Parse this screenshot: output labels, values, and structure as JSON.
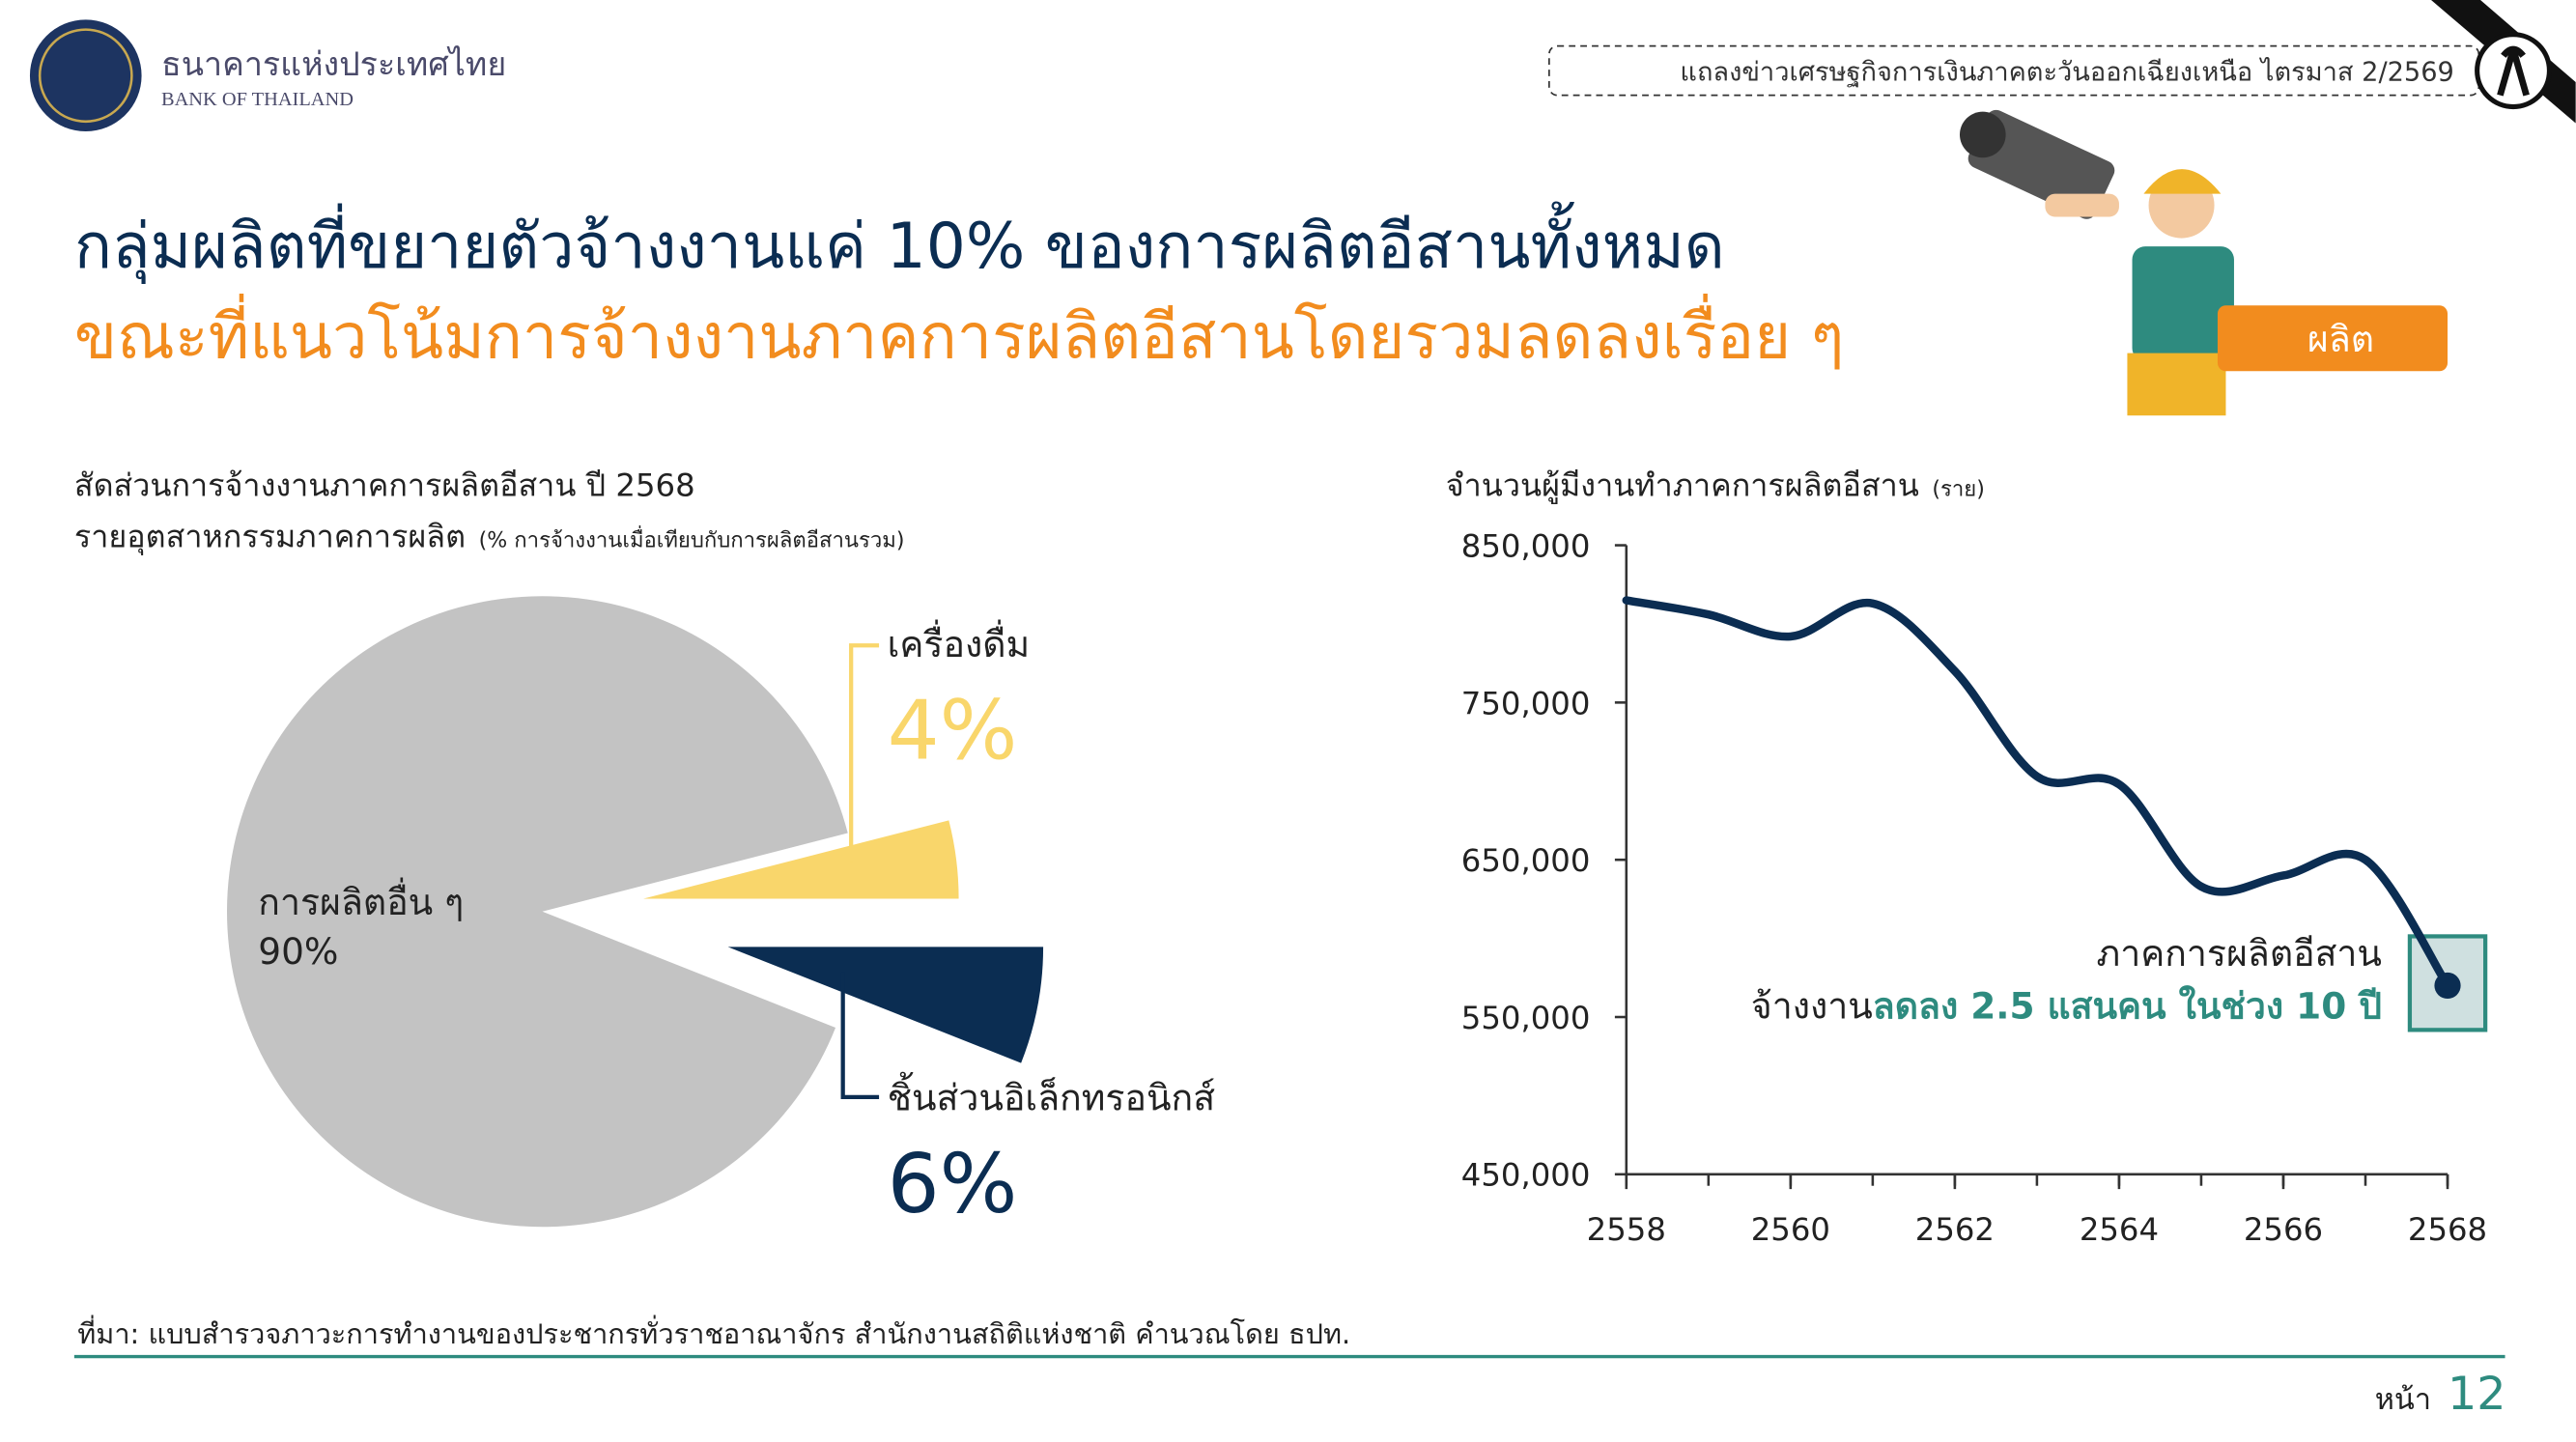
{
  "header": {
    "org_thai": "ธนาคารแห่งประเทศไทย",
    "org_en": "BANK OF THAILAND",
    "banner": "แถลงข่าวเศรษฐกิจการเงินภาคตะวันออกเฉียงเหนือ ไตรมาส 2/2569"
  },
  "title": {
    "line1": "กลุ่มผลิตที่ขยายตัวจ้างงานแค่ 10% ของการผลิตอีสานทั้งหมด",
    "line2": "ขณะที่แนวโน้มการจ้างงานภาคการผลิตอีสานโดยรวมลดลงเรื่อย ๆ"
  },
  "tag": "ผลิต",
  "chart_data": [
    {
      "type": "pie",
      "title": "สัดส่วนการจ้างงานภาคการผลิตอีสาน ปี 2568",
      "subtitle": "รายอุตสาหกรรมภาคการผลิต",
      "note": "(% การจ้างงานเมื่อเทียบกับการผลิตอีสานรวม)",
      "categories": [
        "การผลิตอื่น ๆ",
        "เครื่องดื่ม",
        "ชิ้นส่วนอิเล็กทรอนิกส์"
      ],
      "values": [
        90,
        4,
        6
      ],
      "value_labels": [
        "90%",
        "4%",
        "6%"
      ],
      "colors": [
        "#c3c3c3",
        "#f9d66b",
        "#0b2d52"
      ]
    },
    {
      "type": "line",
      "title": "จำนวนผู้มีงานทำภาคการผลิตอีสาน",
      "unit": "(ราย)",
      "x": [
        2558,
        2559,
        2560,
        2561,
        2562,
        2563,
        2564,
        2565,
        2566,
        2567,
        2568
      ],
      "series": [
        {
          "name": "ภาคการผลิตอีสาน",
          "color": "#0b2d52",
          "values": [
            815000,
            806000,
            792000,
            813000,
            770000,
            703000,
            698000,
            633000,
            640000,
            650000,
            570000
          ]
        }
      ],
      "xlim": [
        2558,
        2568
      ],
      "xticks": [
        2558,
        2560,
        2562,
        2564,
        2566,
        2568
      ],
      "ylim": [
        450000,
        850000
      ],
      "yticks": [
        {
          "value": 450000,
          "label": "450,000"
        },
        {
          "value": 550000,
          "label": "550,000"
        },
        {
          "value": 650000,
          "label": "650,000"
        },
        {
          "value": 750000,
          "label": "750,000"
        },
        {
          "value": 850000,
          "label": "850,000"
        }
      ],
      "annotation": {
        "line1": "ภาคการผลิตอีสาน",
        "line2_prefix": "จ้างงาน",
        "line2_highlight": "ลดลง 2.5 แสนคน ในช่วง 10 ปี"
      }
    }
  ],
  "source": "ที่มา: แบบสำรวจภาวะการทำงานของประชากรทั่วราชอาณาจักร สำนักงานสถิติแห่งชาติ คำนวณโดย ธปท.",
  "page": {
    "label": "หน้า",
    "number": "12"
  }
}
